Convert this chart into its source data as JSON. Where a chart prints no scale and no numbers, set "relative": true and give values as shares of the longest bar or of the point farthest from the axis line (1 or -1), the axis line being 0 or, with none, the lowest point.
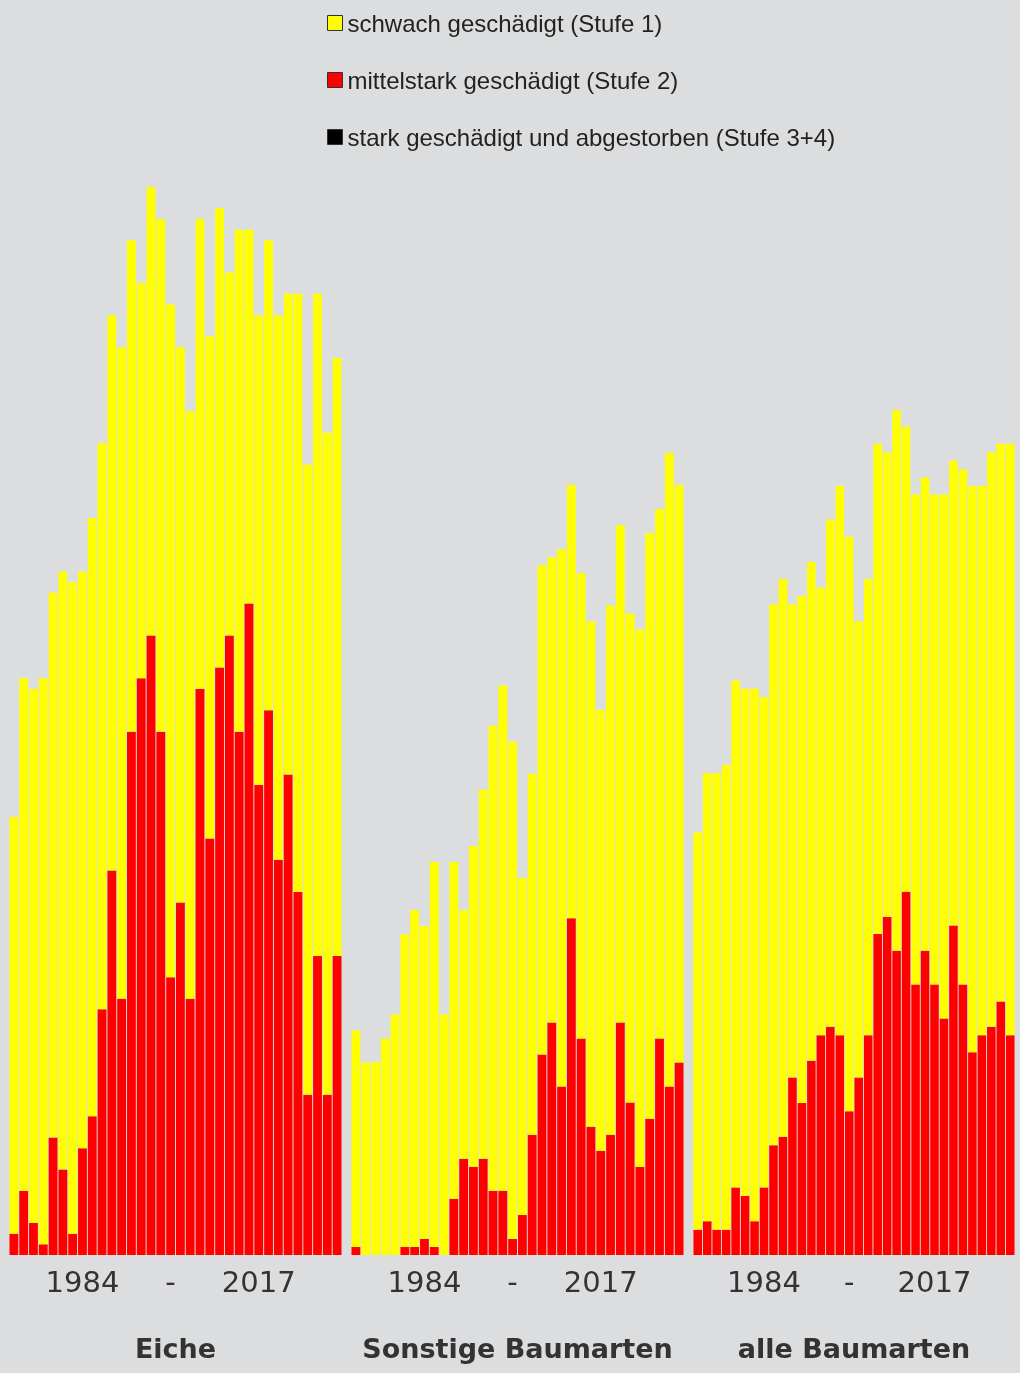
{
  "chart_data": [
    {
      "type": "bar",
      "stacked": true,
      "relative": true,
      "xlabel": "Eiche",
      "legend": false,
      "categories": [
        null,
        null,
        null,
        null,
        null,
        null,
        null,
        "1984",
        null,
        null,
        null,
        null,
        null,
        null,
        null,
        null,
        "-",
        null,
        null,
        null,
        null,
        null,
        null,
        null,
        null,
        "2017",
        null,
        null,
        null,
        null,
        null,
        null,
        null,
        null
      ],
      "series": [
        {
          "color": "#ff0000",
          "values": [
            0.02,
            0.06,
            0.03,
            0.01,
            0.11,
            0.08,
            0.02,
            0.1,
            0.13,
            0.23,
            0.36,
            0.24,
            0.49,
            0.54,
            0.58,
            0.49,
            0.26,
            0.33,
            0.24,
            0.53,
            0.39,
            0.55,
            0.58,
            0.49,
            0.61,
            0.44,
            0.51,
            0.37,
            0.45,
            0.34,
            0.15,
            0.28,
            0.15,
            0.28
          ]
        },
        {
          "color": "#ffff00",
          "values": [
            0.39,
            0.48,
            0.5,
            0.53,
            0.51,
            0.56,
            0.61,
            0.54,
            0.56,
            0.53,
            0.52,
            0.61,
            0.46,
            0.37,
            0.42,
            0.48,
            0.63,
            0.52,
            0.55,
            0.44,
            0.47,
            0.43,
            0.34,
            0.47,
            0.35,
            0.44,
            0.44,
            0.51,
            0.45,
            0.56,
            0.59,
            0.62,
            0.62,
            0.56
          ]
        },
        {
          "color": "#000000",
          "values": [
            0,
            0,
            0,
            0,
            0,
            0,
            0,
            0,
            0,
            0,
            0,
            0,
            0,
            0,
            0,
            0,
            0,
            0,
            0,
            0,
            0,
            0,
            0,
            0,
            0,
            0,
            0,
            0,
            0,
            0,
            0,
            0,
            0,
            0
          ]
        }
      ]
    },
    {
      "type": "bar",
      "stacked": true,
      "relative": true,
      "xlabel": "Sonstige Baumarten",
      "legend": "top",
      "categories": [
        null,
        null,
        null,
        null,
        null,
        null,
        null,
        "1984",
        null,
        null,
        null,
        null,
        null,
        null,
        null,
        null,
        "-",
        null,
        null,
        null,
        null,
        null,
        null,
        null,
        null,
        "2017",
        null,
        null,
        null,
        null,
        null,
        null,
        null,
        null
      ],
      "series": [
        {
          "name": "mittelstark geschädigt (Stufe 2)",
          "color": "#ff0000",
          "values": [
            0.01,
            0,
            0,
            0,
            0,
            0.01,
            0.01,
            0.02,
            0.01,
            0,
            0.07,
            0.12,
            0.11,
            0.12,
            0.08,
            0.08,
            0.02,
            0.05,
            0.15,
            0.25,
            0.29,
            0.21,
            0.42,
            0.27,
            0.16,
            0.13,
            0.15,
            0.29,
            0.19,
            0.11,
            0.17,
            0.27,
            0.21,
            0.24
          ]
        },
        {
          "name": "schwach geschädigt (Stufe 1)",
          "color": "#ffff00",
          "values": [
            0.27,
            0.24,
            0.24,
            0.27,
            0.3,
            0.39,
            0.42,
            0.39,
            0.48,
            0.3,
            0.42,
            0.31,
            0.4,
            0.46,
            0.58,
            0.63,
            0.62,
            0.42,
            0.45,
            0.61,
            0.58,
            0.67,
            0.54,
            0.58,
            0.63,
            0.55,
            0.66,
            0.62,
            0.61,
            0.67,
            0.73,
            0.66,
            0.79,
            0.72
          ]
        },
        {
          "name": "stark geschädigt und abgestorben (Stufe 3+4)",
          "color": "#000000",
          "values": [
            0,
            0,
            0,
            0,
            0,
            0,
            0,
            0,
            0,
            0,
            0,
            0,
            0,
            0,
            0,
            0,
            0,
            0,
            0,
            0,
            0,
            0,
            0,
            0,
            0,
            0,
            0,
            0,
            0,
            0,
            0,
            0,
            0,
            0
          ]
        }
      ]
    },
    {
      "type": "bar",
      "stacked": true,
      "relative": true,
      "xlabel": "alle Baumarten",
      "legend": false,
      "categories": [
        null,
        null,
        null,
        null,
        null,
        null,
        null,
        "1984",
        null,
        null,
        null,
        null,
        null,
        null,
        null,
        null,
        "-",
        null,
        null,
        null,
        null,
        null,
        null,
        null,
        null,
        "2017",
        null,
        null,
        null,
        null,
        null,
        null,
        null,
        null
      ],
      "series": [
        {
          "color": "#ff0000",
          "values": [
            0.03,
            0.04,
            0.03,
            0.03,
            0.08,
            0.07,
            0.04,
            0.08,
            0.13,
            0.14,
            0.21,
            0.18,
            0.23,
            0.26,
            0.27,
            0.26,
            0.17,
            0.21,
            0.26,
            0.38,
            0.4,
            0.36,
            0.43,
            0.32,
            0.36,
            0.32,
            0.28,
            0.39,
            0.32,
            0.24,
            0.26,
            0.27,
            0.3,
            0.26
          ]
        },
        {
          "color": "#ffff00",
          "values": [
            0.47,
            0.53,
            0.54,
            0.55,
            0.6,
            0.6,
            0.63,
            0.58,
            0.64,
            0.66,
            0.56,
            0.6,
            0.59,
            0.53,
            0.6,
            0.65,
            0.68,
            0.54,
            0.54,
            0.58,
            0.55,
            0.64,
            0.55,
            0.58,
            0.56,
            0.58,
            0.62,
            0.55,
            0.61,
            0.67,
            0.65,
            0.68,
            0.66,
            0.7
          ]
        },
        {
          "color": "#000000",
          "values": [
            0,
            0,
            0,
            0,
            0,
            0,
            0,
            0,
            0,
            0,
            0,
            0,
            0,
            0,
            0,
            0,
            0,
            0,
            0,
            0,
            0,
            0,
            0,
            0,
            0,
            0,
            0,
            0,
            0,
            0,
            0,
            0,
            0,
            0
          ]
        }
      ]
    }
  ]
}
